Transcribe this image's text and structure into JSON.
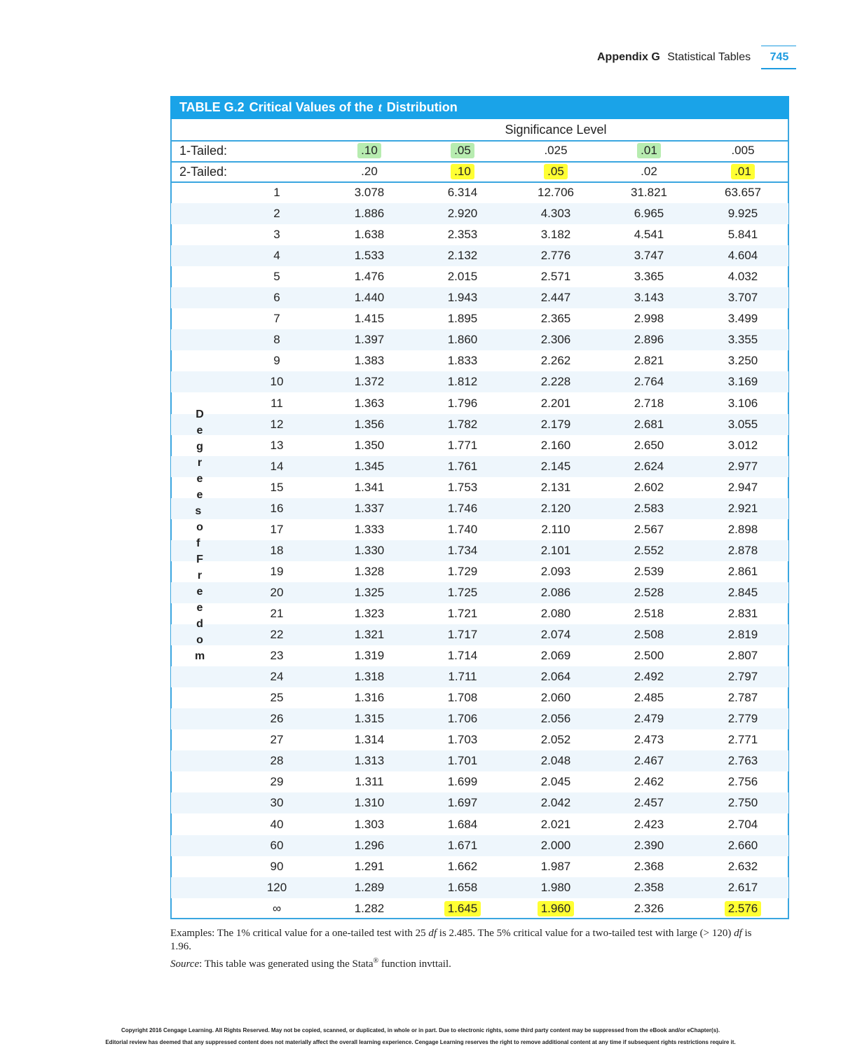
{
  "header": {
    "appendix": "Appendix G",
    "title": "Statistical Tables",
    "page": "745"
  },
  "table": {
    "title": [
      "TABLE G.2",
      "Critical Values of the",
      "t",
      "Distribution"
    ],
    "group_header": "Significance Level",
    "one_tailed": {
      "label": "1-Tailed:",
      "levels": [
        ".10",
        ".05",
        ".025",
        ".01",
        ".005"
      ]
    },
    "two_tailed": {
      "label": "2-Tailed:",
      "levels": [
        ".20",
        ".10",
        ".05",
        ".02",
        ".01"
      ]
    },
    "side_label": "Degrees of Freedom",
    "rows": [
      [
        "1",
        "3.078",
        "6.314",
        "12.706",
        "31.821",
        "63.657"
      ],
      [
        "2",
        "1.886",
        "2.920",
        "4.303",
        "6.965",
        "9.925"
      ],
      [
        "3",
        "1.638",
        "2.353",
        "3.182",
        "4.541",
        "5.841"
      ],
      [
        "4",
        "1.533",
        "2.132",
        "2.776",
        "3.747",
        "4.604"
      ],
      [
        "5",
        "1.476",
        "2.015",
        "2.571",
        "3.365",
        "4.032"
      ],
      [
        "6",
        "1.440",
        "1.943",
        "2.447",
        "3.143",
        "3.707"
      ],
      [
        "7",
        "1.415",
        "1.895",
        "2.365",
        "2.998",
        "3.499"
      ],
      [
        "8",
        "1.397",
        "1.860",
        "2.306",
        "2.896",
        "3.355"
      ],
      [
        "9",
        "1.383",
        "1.833",
        "2.262",
        "2.821",
        "3.250"
      ],
      [
        "10",
        "1.372",
        "1.812",
        "2.228",
        "2.764",
        "3.169"
      ],
      [
        "11",
        "1.363",
        "1.796",
        "2.201",
        "2.718",
        "3.106"
      ],
      [
        "12",
        "1.356",
        "1.782",
        "2.179",
        "2.681",
        "3.055"
      ],
      [
        "13",
        "1.350",
        "1.771",
        "2.160",
        "2.650",
        "3.012"
      ],
      [
        "14",
        "1.345",
        "1.761",
        "2.145",
        "2.624",
        "2.977"
      ],
      [
        "15",
        "1.341",
        "1.753",
        "2.131",
        "2.602",
        "2.947"
      ],
      [
        "16",
        "1.337",
        "1.746",
        "2.120",
        "2.583",
        "2.921"
      ],
      [
        "17",
        "1.333",
        "1.740",
        "2.110",
        "2.567",
        "2.898"
      ],
      [
        "18",
        "1.330",
        "1.734",
        "2.101",
        "2.552",
        "2.878"
      ],
      [
        "19",
        "1.328",
        "1.729",
        "2.093",
        "2.539",
        "2.861"
      ],
      [
        "20",
        "1.325",
        "1.725",
        "2.086",
        "2.528",
        "2.845"
      ],
      [
        "21",
        "1.323",
        "1.721",
        "2.080",
        "2.518",
        "2.831"
      ],
      [
        "22",
        "1.321",
        "1.717",
        "2.074",
        "2.508",
        "2.819"
      ],
      [
        "23",
        "1.319",
        "1.714",
        "2.069",
        "2.500",
        "2.807"
      ],
      [
        "24",
        "1.318",
        "1.711",
        "2.064",
        "2.492",
        "2.797"
      ],
      [
        "25",
        "1.316",
        "1.708",
        "2.060",
        "2.485",
        "2.787"
      ],
      [
        "26",
        "1.315",
        "1.706",
        "2.056",
        "2.479",
        "2.779"
      ],
      [
        "27",
        "1.314",
        "1.703",
        "2.052",
        "2.473",
        "2.771"
      ],
      [
        "28",
        "1.313",
        "1.701",
        "2.048",
        "2.467",
        "2.763"
      ],
      [
        "29",
        "1.311",
        "1.699",
        "2.045",
        "2.462",
        "2.756"
      ],
      [
        "30",
        "1.310",
        "1.697",
        "2.042",
        "2.457",
        "2.750"
      ],
      [
        "40",
        "1.303",
        "1.684",
        "2.021",
        "2.423",
        "2.704"
      ],
      [
        "60",
        "1.296",
        "1.671",
        "2.000",
        "2.390",
        "2.660"
      ],
      [
        "90",
        "1.291",
        "1.662",
        "1.987",
        "2.368",
        "2.632"
      ],
      [
        "120",
        "1.289",
        "1.658",
        "1.980",
        "2.358",
        "2.617"
      ],
      [
        "∞",
        "1.282",
        "1.645",
        "1.960",
        "2.326",
        "2.576"
      ]
    ]
  },
  "notes": {
    "examples": [
      "Examples:",
      " The 1% critical value for a one-tailed test with 25 ",
      "df",
      " is 2.485. The 5% critical value for a two-tailed test with large (> 120) ",
      "df",
      " is 1.96."
    ],
    "source": [
      "Source",
      ": This table was generated using the Stata",
      "®",
      " function invttail."
    ]
  },
  "copyright": [
    "Copyright 2016 Cengage Learning. All Rights Reserved. May not be copied, scanned, or duplicated, in whole or in part. Due to electronic rights, some third party content may be suppressed from the eBook and/or eChapter(s).",
    "Editorial review has deemed that any suppressed content does not materially affect the overall learning experience. Cengage Learning reserves the right to remove additional content at any time if subsequent rights restrictions require it."
  ]
}
